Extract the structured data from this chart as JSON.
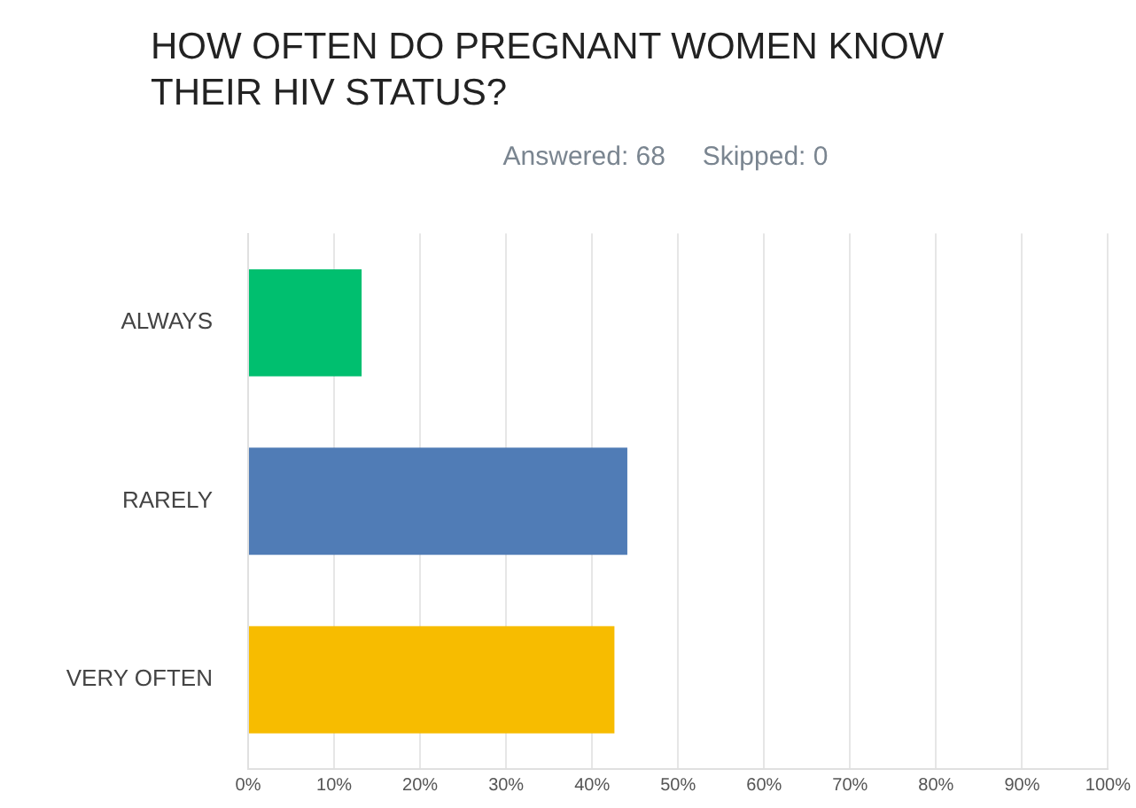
{
  "chart_data": {
    "type": "bar",
    "orientation": "horizontal",
    "title": "HOW OFTEN DO PREGNANT WOMEN KNOW THEIR HIV STATUS?",
    "subtitle": "Answered: 68     Skipped: 0",
    "categories": [
      "ALWAYS",
      "RARELY",
      "VERY OFTEN"
    ],
    "values": [
      13.2,
      44.1,
      42.6
    ],
    "colors": [
      "#00bf6f",
      "#507cb6",
      "#f7bc00"
    ],
    "xlim": [
      0,
      100
    ],
    "xticks": [
      {
        "value": 0,
        "label": "0%"
      },
      {
        "value": 10,
        "label": "10%"
      },
      {
        "value": 20,
        "label": "20%"
      },
      {
        "value": 30,
        "label": "30%"
      },
      {
        "value": 40,
        "label": "40%"
      },
      {
        "value": 50,
        "label": "50%"
      },
      {
        "value": 60,
        "label": "60%"
      },
      {
        "value": 70,
        "label": "70%"
      },
      {
        "value": 80,
        "label": "80%"
      },
      {
        "value": 90,
        "label": "90%"
      },
      {
        "value": 100,
        "label": "100%"
      }
    ],
    "grid": "x"
  }
}
